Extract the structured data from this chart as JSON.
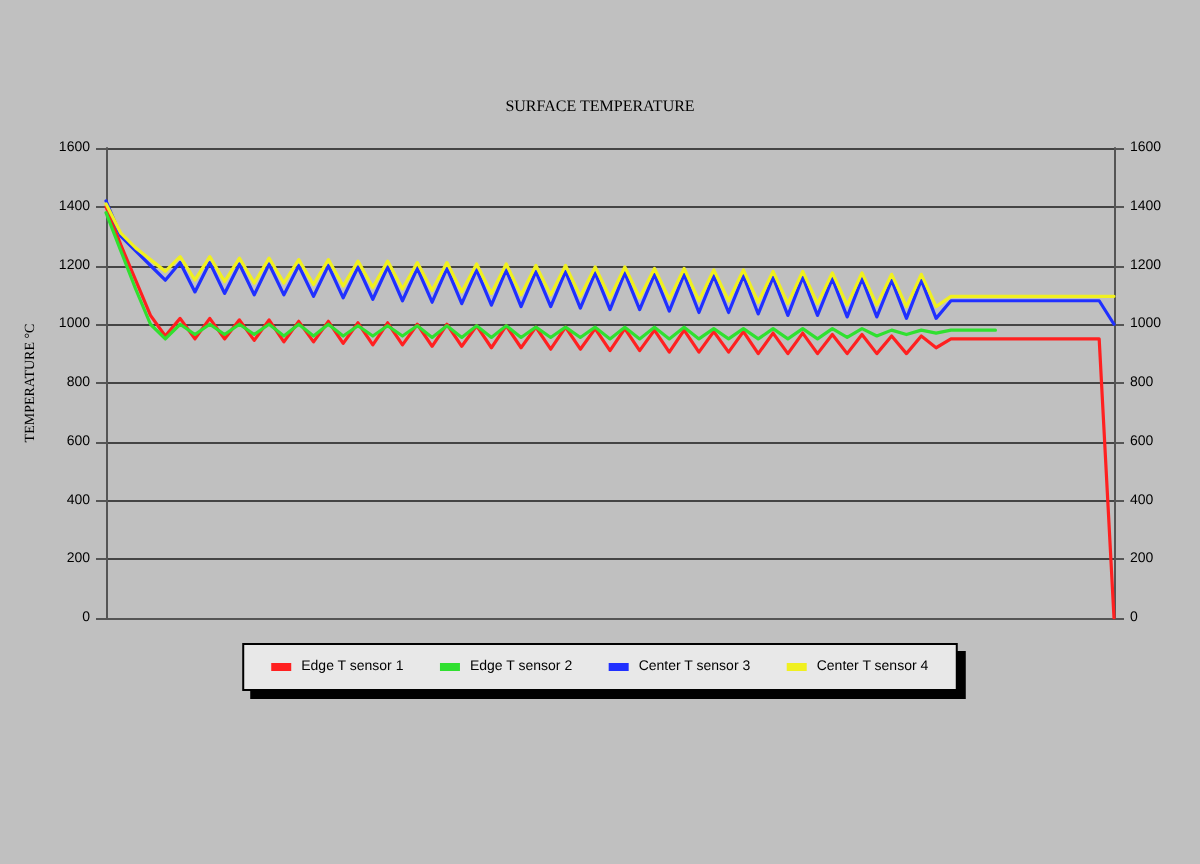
{
  "chart_data": {
    "type": "line",
    "title": "SURFACE TEMPERATURE",
    "ylabel": "TEMPERATURE °C",
    "categories": [
      null,
      null,
      null,
      null,
      null,
      null,
      null,
      null,
      null,
      null,
      null,
      null,
      null,
      null,
      null,
      null,
      null,
      null,
      null,
      null,
      null,
      null,
      null,
      null,
      null,
      null,
      null,
      null,
      null,
      null,
      null,
      null,
      null,
      null,
      null,
      null,
      null,
      null,
      null,
      null,
      null,
      null,
      null,
      null,
      null,
      null,
      null,
      null,
      null,
      null,
      null,
      null,
      null,
      null,
      null,
      null,
      null,
      null,
      null,
      null,
      null,
      null,
      null,
      null,
      null,
      null,
      null,
      null,
      null
    ],
    "series": [
      {
        "name": "Edge T sensor 1",
        "color": "#ff2020",
        "values": [
          1400,
          1270,
          1150,
          1030,
          960,
          1020,
          950,
          1020,
          950,
          1015,
          945,
          1015,
          940,
          1010,
          940,
          1010,
          935,
          1005,
          930,
          1005,
          930,
          1000,
          925,
          1000,
          925,
          995,
          920,
          995,
          920,
          990,
          915,
          990,
          915,
          985,
          910,
          985,
          910,
          980,
          905,
          980,
          905,
          975,
          905,
          975,
          900,
          970,
          900,
          970,
          900,
          965,
          900,
          965,
          900,
          960,
          900,
          960,
          920,
          950,
          950,
          950,
          950,
          950,
          950,
          950,
          950,
          950,
          950,
          950,
          0
        ]
      },
      {
        "name": "Edge T sensor 2",
        "color": "#30e030",
        "values": [
          1380,
          1250,
          1120,
          1000,
          950,
          1000,
          965,
          1000,
          965,
          1000,
          965,
          1000,
          960,
          1000,
          960,
          1000,
          960,
          995,
          960,
          995,
          960,
          995,
          955,
          995,
          955,
          995,
          955,
          995,
          955,
          990,
          955,
          990,
          955,
          990,
          950,
          990,
          950,
          990,
          950,
          990,
          950,
          985,
          950,
          985,
          950,
          985,
          950,
          985,
          950,
          985,
          955,
          985,
          960,
          980,
          965,
          980,
          970,
          980,
          980,
          980,
          980,
          null,
          null,
          null,
          null,
          null,
          null,
          null,
          null
        ]
      },
      {
        "name": "Center T sensor 3",
        "color": "#2030ff",
        "values": [
          1420,
          1300,
          1250,
          1200,
          1150,
          1210,
          1110,
          1210,
          1105,
          1205,
          1100,
          1205,
          1100,
          1200,
          1095,
          1200,
          1090,
          1195,
          1085,
          1195,
          1080,
          1190,
          1075,
          1190,
          1070,
          1185,
          1065,
          1185,
          1060,
          1180,
          1060,
          1180,
          1055,
          1175,
          1050,
          1175,
          1050,
          1170,
          1045,
          1170,
          1040,
          1165,
          1040,
          1165,
          1035,
          1160,
          1030,
          1160,
          1030,
          1155,
          1025,
          1155,
          1025,
          1150,
          1020,
          1150,
          1020,
          1080,
          1080,
          1080,
          1080,
          1080,
          1080,
          1080,
          1080,
          1080,
          1080,
          1080,
          1000
        ]
      },
      {
        "name": "Center T sensor 4",
        "color": "#f0f020",
        "values": [
          1410,
          1310,
          1260,
          1220,
          1180,
          1230,
          1150,
          1230,
          1145,
          1225,
          1140,
          1225,
          1140,
          1220,
          1135,
          1220,
          1130,
          1215,
          1125,
          1215,
          1120,
          1210,
          1115,
          1210,
          1110,
          1205,
          1105,
          1205,
          1100,
          1200,
          1100,
          1200,
          1095,
          1195,
          1090,
          1195,
          1090,
          1190,
          1085,
          1190,
          1080,
          1185,
          1080,
          1185,
          1075,
          1180,
          1070,
          1180,
          1070,
          1175,
          1065,
          1175,
          1065,
          1170,
          1060,
          1170,
          1060,
          1095,
          1095,
          1095,
          1095,
          1095,
          1095,
          1095,
          1095,
          1095,
          1095,
          1095,
          1095
        ]
      }
    ],
    "ylim": [
      0,
      1600
    ],
    "yticks": [
      0,
      200,
      400,
      600,
      800,
      1000,
      1200,
      1400,
      1600
    ],
    "y2lim": [
      0,
      1600
    ],
    "y2ticks": [
      0,
      200,
      400,
      600,
      800,
      1000,
      1200,
      1400,
      1600
    ],
    "grid": "y",
    "legend": "bottom",
    "marker": "none",
    "line_style": "solid"
  }
}
